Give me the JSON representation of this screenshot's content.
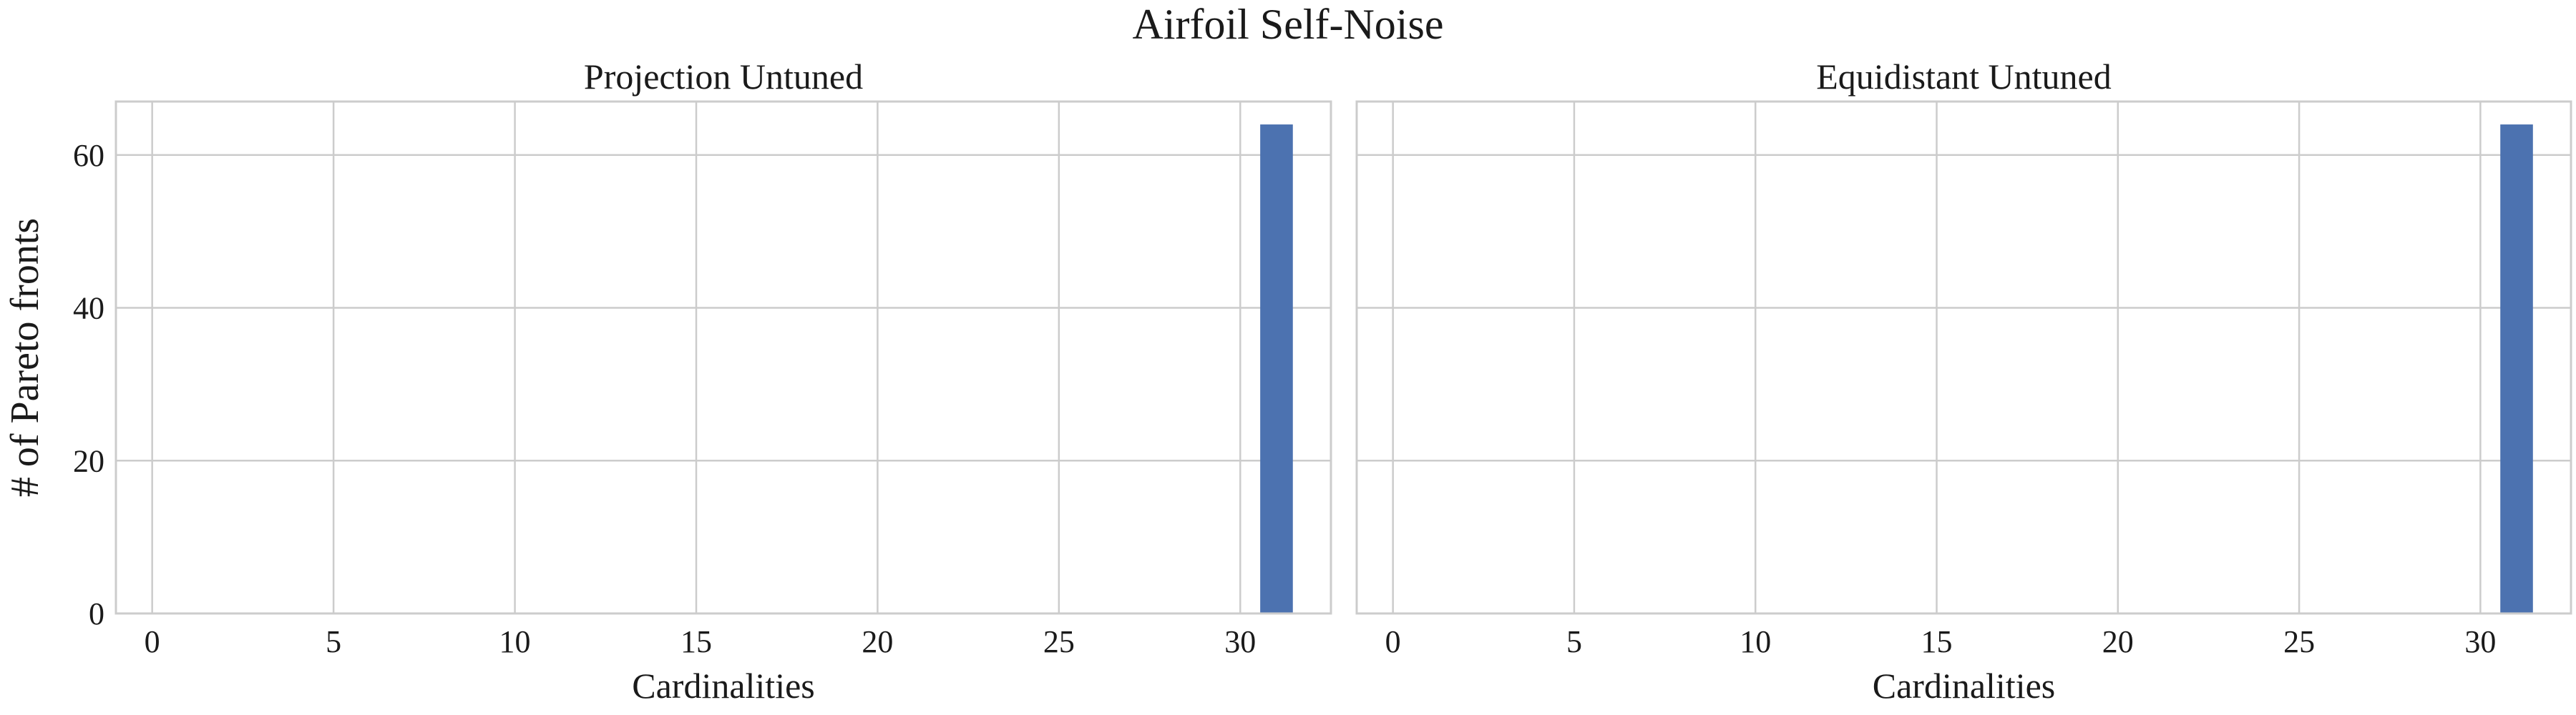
{
  "figure": {
    "title": "Airfoil Self-Noise",
    "ylabel": "# of Pareto fronts"
  },
  "colors": {
    "bar": "#4c72b0",
    "grid": "#cccccc",
    "frame": "#cccccc",
    "background": "#ffffff"
  },
  "chart_data": [
    {
      "type": "bar",
      "title": "Projection Untuned",
      "xlabel": "Cardinalities",
      "ylabel": "# of Pareto fronts",
      "xlim": [
        -1,
        32.5
      ],
      "ylim": [
        0,
        67
      ],
      "xticks": [
        0,
        5,
        10,
        15,
        20,
        25,
        30
      ],
      "yticks": [
        0,
        20,
        40,
        60
      ],
      "bar_width": 0.9,
      "x": [
        31
      ],
      "values": [
        64
      ],
      "grid": true
    },
    {
      "type": "bar",
      "title": "Equidistant Untuned",
      "xlabel": "Cardinalities",
      "ylabel": "",
      "xlim": [
        -1,
        32.5
      ],
      "ylim": [
        0,
        67
      ],
      "xticks": [
        0,
        5,
        10,
        15,
        20,
        25,
        30
      ],
      "yticks": [],
      "bar_width": 0.9,
      "x": [
        31
      ],
      "values": [
        64
      ],
      "grid": true
    }
  ]
}
